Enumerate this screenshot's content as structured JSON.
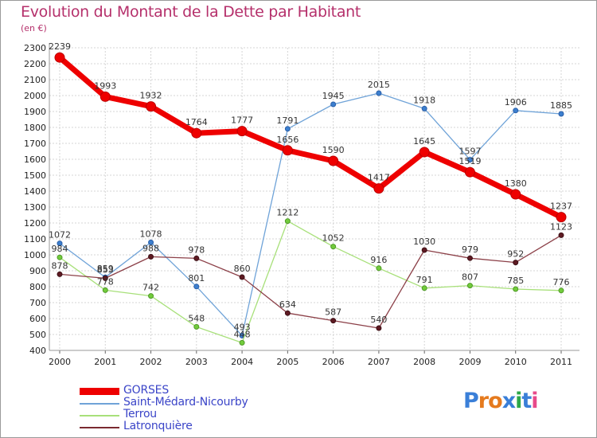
{
  "title": "Evolution du Montant de la Dette par Habitant",
  "subtitle": "(en €)",
  "logo_text": "Proxiti",
  "chart_data": {
    "type": "line",
    "x": [
      "2000",
      "2001",
      "2002",
      "2003",
      "2004",
      "2005",
      "2006",
      "2007",
      "2008",
      "2009",
      "2010",
      "2011"
    ],
    "ylim": [
      400,
      2300
    ],
    "yticks": [
      400,
      500,
      600,
      700,
      800,
      900,
      1000,
      1100,
      1200,
      1300,
      1400,
      1500,
      1600,
      1700,
      1800,
      1900,
      2000,
      2100,
      2200,
      2300
    ],
    "grid": true,
    "legend_position": "bottom-left",
    "series": [
      {
        "name": "GORSES",
        "color": "#ee0000",
        "values": [
          2239,
          1993,
          1932,
          1764,
          1777,
          1656,
          1590,
          1417,
          1645,
          1519,
          1380,
          1237
        ]
      },
      {
        "name": "Saint-Médard-Nicourby",
        "color": "#6fa3d8",
        "values": [
          1072,
          859,
          1078,
          801,
          493,
          1791,
          1945,
          2015,
          1918,
          1597,
          1906,
          1885
        ]
      },
      {
        "name": "Terrou",
        "color": "#a8e07a",
        "values": [
          984,
          778,
          742,
          548,
          448,
          1212,
          1052,
          916,
          791,
          807,
          785,
          776
        ]
      },
      {
        "name": "Latronquière",
        "color": "#7a2a30",
        "values": [
          878,
          853,
          988,
          978,
          860,
          634,
          587,
          540,
          1030,
          979,
          952,
          1123
        ]
      }
    ]
  }
}
